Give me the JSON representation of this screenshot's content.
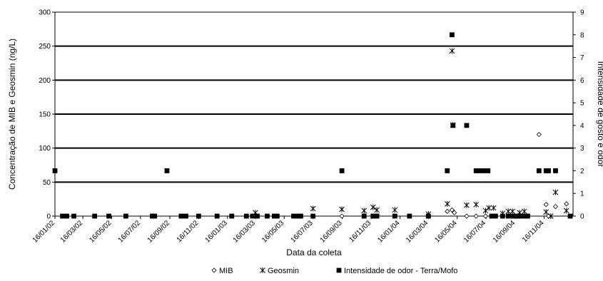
{
  "chart_data": {
    "type": "scatter",
    "xlabel": "Data da coleta",
    "ylabel_left": "Concentração de MIB e Geosmin (ng/L)",
    "ylabel_right": "Intensidade de gosto e odor",
    "ylim_left": [
      0,
      300
    ],
    "ylim_right": [
      0,
      9
    ],
    "yticks_left": [
      "0",
      "50",
      "100",
      "150",
      "200",
      "250",
      "300"
    ],
    "yticks_right": [
      "0",
      "1",
      "2",
      "3",
      "4",
      "5",
      "6",
      "7",
      "8",
      "9"
    ],
    "xlim": [
      "2002-01-16",
      "2005-01-16"
    ],
    "x_tick_labels": [
      "16/01/02",
      "16/03/02",
      "16/05/02",
      "16/07/02",
      "16/09/02",
      "16/11/02",
      "16/01/03",
      "16/03/03",
      "16/05/03",
      "16/07/03",
      "16/09/03",
      "16/11/03",
      "16/01/04",
      "16/03/04",
      "16/05/04",
      "16/07/04",
      "16/09/04",
      "16/11/04"
    ],
    "x_tick_dates": [
      "2002-01-16",
      "2002-03-16",
      "2002-05-16",
      "2002-07-16",
      "2002-09-16",
      "2002-11-16",
      "2003-01-16",
      "2003-03-16",
      "2003-05-16",
      "2003-07-16",
      "2003-09-16",
      "2003-11-16",
      "2004-01-16",
      "2004-03-16",
      "2004-05-16",
      "2004-07-16",
      "2004-09-16",
      "2004-11-16"
    ],
    "grid": "horizontal",
    "legend_position": "bottom",
    "series": [
      {
        "name": "MIB",
        "axis": "left",
        "marker": "diamond-open",
        "points": [
          [
            "2003-09-15",
            0
          ],
          [
            "2004-04-25",
            7
          ],
          [
            "2004-05-05",
            9
          ],
          [
            "2004-05-10",
            5
          ],
          [
            "2004-06-05",
            0
          ],
          [
            "2004-06-25",
            0
          ],
          [
            "2004-07-15",
            0
          ],
          [
            "2004-08-20",
            0
          ],
          [
            "2004-09-20",
            0
          ],
          [
            "2004-10-12",
            0
          ],
          [
            "2004-11-05",
            120
          ],
          [
            "2004-11-20",
            17
          ],
          [
            "2004-12-10",
            14
          ],
          [
            "2005-01-02",
            18
          ],
          [
            "2004-11-25",
            0
          ]
        ]
      },
      {
        "name": "Geosmin",
        "axis": "left",
        "marker": "star",
        "points": [
          [
            "2003-03-16",
            5
          ],
          [
            "2003-07-16",
            11
          ],
          [
            "2003-09-15",
            10
          ],
          [
            "2003-11-01",
            8
          ],
          [
            "2003-11-20",
            13
          ],
          [
            "2003-11-28",
            9
          ],
          [
            "2004-01-05",
            9
          ],
          [
            "2004-03-16",
            3
          ],
          [
            "2004-04-25",
            18
          ],
          [
            "2004-05-05",
            243
          ],
          [
            "2004-05-07",
            134
          ],
          [
            "2004-06-05",
            16
          ],
          [
            "2004-06-25",
            17
          ],
          [
            "2004-07-15",
            8
          ],
          [
            "2004-07-22",
            12
          ],
          [
            "2004-08-01",
            12
          ],
          [
            "2004-08-20",
            4
          ],
          [
            "2004-09-01",
            7
          ],
          [
            "2004-09-10",
            7
          ],
          [
            "2004-09-25",
            5
          ],
          [
            "2004-10-05",
            7
          ],
          [
            "2004-11-20",
            6
          ],
          [
            "2004-11-30",
            0
          ],
          [
            "2004-12-10",
            35
          ],
          [
            "2005-01-02",
            8
          ]
        ]
      },
      {
        "name": "Intensidade de odor - Terra/Mofo",
        "axis": "right",
        "marker": "square-filled",
        "points": [
          [
            "2002-01-16",
            2
          ],
          [
            "2002-02-01",
            0
          ],
          [
            "2002-02-10",
            0
          ],
          [
            "2002-02-25",
            0
          ],
          [
            "2002-04-10",
            0
          ],
          [
            "2002-05-10",
            0
          ],
          [
            "2002-06-15",
            0
          ],
          [
            "2002-08-10",
            0
          ],
          [
            "2002-08-15",
            0
          ],
          [
            "2002-09-10",
            2
          ],
          [
            "2002-10-10",
            0
          ],
          [
            "2002-10-20",
            0
          ],
          [
            "2002-11-16",
            0
          ],
          [
            "2002-12-25",
            0
          ],
          [
            "2003-01-25",
            0
          ],
          [
            "2003-02-25",
            0
          ],
          [
            "2003-03-10",
            0
          ],
          [
            "2003-03-20",
            0
          ],
          [
            "2003-04-10",
            0
          ],
          [
            "2003-04-25",
            0
          ],
          [
            "2003-05-01",
            0
          ],
          [
            "2003-06-05",
            0
          ],
          [
            "2003-06-15",
            0
          ],
          [
            "2003-06-20",
            0
          ],
          [
            "2003-07-16",
            0
          ],
          [
            "2003-09-15",
            2
          ],
          [
            "2003-11-01",
            0
          ],
          [
            "2003-11-20",
            0
          ],
          [
            "2003-11-28",
            0
          ],
          [
            "2004-01-05",
            0
          ],
          [
            "2004-02-05",
            0
          ],
          [
            "2004-03-16",
            0
          ],
          [
            "2004-04-25",
            2
          ],
          [
            "2004-05-05",
            8
          ],
          [
            "2004-05-07",
            4
          ],
          [
            "2004-06-05",
            4
          ],
          [
            "2004-06-25",
            2
          ],
          [
            "2004-07-02",
            2
          ],
          [
            "2004-07-10",
            2
          ],
          [
            "2004-07-20",
            2
          ],
          [
            "2004-07-28",
            0
          ],
          [
            "2004-08-05",
            0
          ],
          [
            "2004-08-20",
            0
          ],
          [
            "2004-09-01",
            0
          ],
          [
            "2004-09-10",
            0
          ],
          [
            "2004-09-20",
            0
          ],
          [
            "2004-09-25",
            0
          ],
          [
            "2004-10-05",
            0
          ],
          [
            "2004-10-12",
            0
          ],
          [
            "2004-11-05",
            2
          ],
          [
            "2004-11-20",
            2
          ],
          [
            "2004-11-25",
            2
          ],
          [
            "2004-12-10",
            2
          ],
          [
            "2005-01-10",
            0
          ]
        ]
      }
    ]
  }
}
